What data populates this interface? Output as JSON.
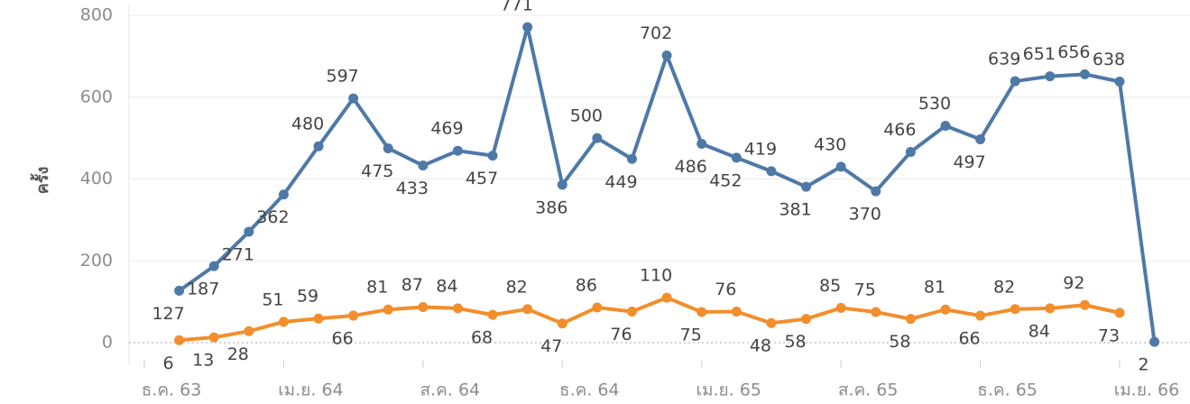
{
  "chart_data": {
    "type": "line",
    "y_label": "ครั้ง",
    "categories": [
      "ธ.ค. 63",
      null,
      null,
      null,
      "เม.ย. 64",
      null,
      null,
      null,
      "ส.ค. 64",
      null,
      null,
      null,
      "ธ.ค. 64",
      null,
      null,
      null,
      "เม.ย. 65",
      null,
      null,
      null,
      "ส.ค. 65",
      null,
      null,
      null,
      "ธ.ค. 65",
      null,
      null,
      null,
      "เม.ย. 66",
      null
    ],
    "series": [
      {
        "color": "#4e79a7",
        "values": [
          null,
          127,
          187,
          271,
          362,
          480,
          597,
          475,
          433,
          469,
          457,
          771,
          386,
          500,
          449,
          702,
          486,
          452,
          419,
          381,
          430,
          370,
          466,
          530,
          497,
          639,
          651,
          656,
          638,
          2
        ]
      },
      {
        "color": "#f28e2b",
        "values": [
          null,
          6,
          13,
          28,
          51,
          59,
          66,
          81,
          87,
          84,
          68,
          82,
          47,
          86,
          76,
          110,
          75,
          76,
          48,
          58,
          85,
          75,
          58,
          81,
          66,
          82,
          84,
          92,
          73,
          null
        ]
      }
    ],
    "ylim": [
      0,
      800
    ],
    "yticks": [
      0,
      200,
      400,
      600,
      800
    ],
    "grid": true
  }
}
